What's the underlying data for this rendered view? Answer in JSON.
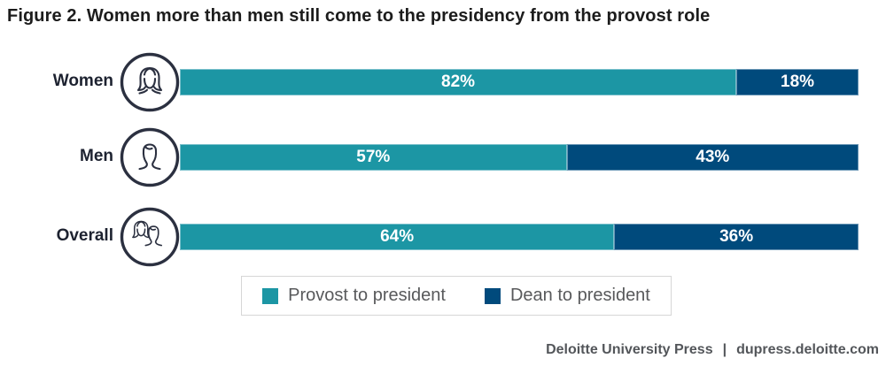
{
  "title": "Figure 2. Women more than men still come to the presidency from the provost role",
  "chart_data": {
    "type": "bar",
    "orientation": "horizontal",
    "stacked": true,
    "categories": [
      "Women",
      "Men",
      "Overall"
    ],
    "series": [
      {
        "name": "Provost to president",
        "color": "#1C96A4",
        "values": [
          82,
          57,
          64
        ],
        "labels": [
          "82%",
          "57%",
          "64%"
        ]
      },
      {
        "name": "Dean to president",
        "color": "#004A7C",
        "values": [
          18,
          43,
          36
        ],
        "labels": [
          "18%",
          "43%",
          "36%"
        ]
      }
    ],
    "xlim": [
      0,
      100
    ],
    "grid": false,
    "legend_position": "bottom-center",
    "value_label_style": "white bold, centered in segment"
  },
  "icons": {
    "row_1": "woman-icon",
    "row_2": "man-icon",
    "row_3": "woman-and-man-icon"
  },
  "footer": {
    "brand": "Deloitte University Press",
    "separator": "|",
    "site": "dupress.deloitte.com"
  }
}
